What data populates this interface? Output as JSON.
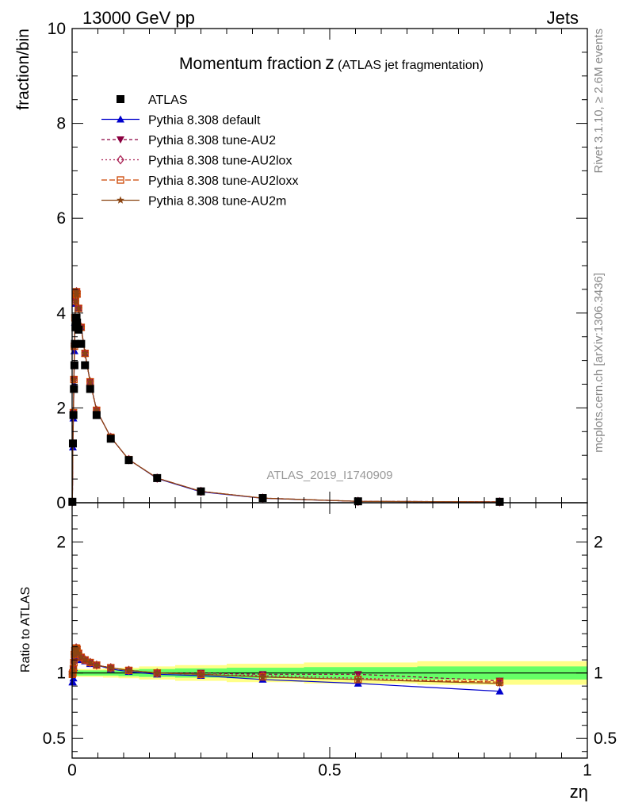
{
  "header": {
    "left": "13000 GeV pp",
    "right": "Jets"
  },
  "title": {
    "main": "Momentum fraction",
    "var": "z",
    "sub": "(ATLAS jet fragmentation)"
  },
  "side": {
    "rivet": "Rivet 3.1.10, ≥ 2.6M events",
    "mcplots": "mcplots.cern.ch [arXiv:1306.3436]"
  },
  "watermark": "ATLAS_2019_I1740909",
  "ylabel_top": "fraction/bin",
  "ylabel_bottom": "Ratio to ATLAS",
  "xlabel": "zη",
  "colors": {
    "atlas": "#000000",
    "default": "#0000cc",
    "au2": "#8b0040",
    "au2lox": "#aa2255",
    "au2loxx": "#cc4400",
    "au2m": "#8b4513",
    "band_inner": "#66ff66",
    "band_outer": "#ffff88"
  },
  "chart_data": [
    {
      "type": "scatter",
      "panel": "main",
      "ylabel": "fraction/bin",
      "xlim": [
        0,
        1
      ],
      "ylim": [
        0,
        10
      ],
      "yticks": [
        "0",
        "2",
        "4",
        "6",
        "8",
        "10"
      ],
      "legend_position": "top-left",
      "series": [
        {
          "name": "ATLAS",
          "key": "atlas",
          "marker": "square",
          "x": [
            0.0005,
            0.0015,
            0.0025,
            0.0035,
            0.0045,
            0.0055,
            0.0065,
            0.0075,
            0.0085,
            0.0095,
            0.0125,
            0.0175,
            0.025,
            0.035,
            0.0475,
            0.075,
            0.11,
            0.165,
            0.25,
            0.37,
            0.555,
            0.83
          ],
          "y": [
            0.02,
            1.25,
            1.85,
            2.4,
            2.9,
            3.35,
            3.7,
            3.85,
            3.9,
            3.8,
            3.65,
            3.35,
            2.9,
            2.4,
            1.85,
            1.35,
            0.9,
            0.52,
            0.24,
            0.1,
            0.03,
            0.02
          ]
        },
        {
          "name": "Pythia 8.308 default",
          "key": "default",
          "marker": "triangle-up",
          "x": [
            0.0005,
            0.0015,
            0.0025,
            0.0035,
            0.0045,
            0.0055,
            0.0065,
            0.0075,
            0.0085,
            0.0095,
            0.0125,
            0.0175,
            0.025,
            0.035,
            0.0475,
            0.075,
            0.11,
            0.165,
            0.25,
            0.37,
            0.555,
            0.83
          ],
          "y": [
            0.02,
            1.17,
            1.78,
            2.5,
            3.2,
            3.8,
            4.2,
            4.4,
            4.45,
            4.4,
            4.1,
            3.7,
            3.15,
            2.55,
            1.95,
            1.38,
            0.91,
            0.51,
            0.23,
            0.093,
            0.028,
            0.017
          ]
        },
        {
          "name": "Pythia 8.308 tune-AU2",
          "key": "au2",
          "marker": "triangle-down",
          "x": [
            0.0005,
            0.0015,
            0.0025,
            0.0035,
            0.0045,
            0.0055,
            0.0065,
            0.0075,
            0.0085,
            0.0095,
            0.0125,
            0.0175,
            0.025,
            0.035,
            0.0475,
            0.075,
            0.11,
            0.165,
            0.25,
            0.37,
            0.555,
            0.83
          ],
          "y": [
            0.02,
            1.25,
            1.9,
            2.6,
            3.3,
            3.9,
            4.25,
            4.4,
            4.45,
            4.4,
            4.1,
            3.7,
            3.15,
            2.55,
            1.95,
            1.38,
            0.91,
            0.52,
            0.24,
            0.098,
            0.03,
            0.019
          ]
        },
        {
          "name": "Pythia 8.308 tune-AU2lox",
          "key": "au2lox",
          "marker": "diamond-open",
          "x": [
            0.0005,
            0.0015,
            0.0025,
            0.0035,
            0.0045,
            0.0055,
            0.0065,
            0.0075,
            0.0085,
            0.0095,
            0.0125,
            0.0175,
            0.025,
            0.035,
            0.0475,
            0.075,
            0.11,
            0.165,
            0.25,
            0.37,
            0.555,
            0.83
          ],
          "y": [
            0.02,
            1.25,
            1.9,
            2.6,
            3.3,
            3.9,
            4.25,
            4.4,
            4.45,
            4.4,
            4.1,
            3.7,
            3.15,
            2.55,
            1.95,
            1.38,
            0.91,
            0.52,
            0.24,
            0.097,
            0.029,
            0.019
          ]
        },
        {
          "name": "Pythia 8.308 tune-AU2loxx",
          "key": "au2loxx",
          "marker": "square-open",
          "x": [
            0.0005,
            0.0015,
            0.0025,
            0.0035,
            0.0045,
            0.0055,
            0.0065,
            0.0075,
            0.0085,
            0.0095,
            0.0125,
            0.0175,
            0.025,
            0.035,
            0.0475,
            0.075,
            0.11,
            0.165,
            0.25,
            0.37,
            0.555,
            0.83
          ],
          "y": [
            0.02,
            1.25,
            1.9,
            2.6,
            3.3,
            3.9,
            4.25,
            4.4,
            4.45,
            4.4,
            4.1,
            3.7,
            3.15,
            2.55,
            1.95,
            1.38,
            0.91,
            0.52,
            0.24,
            0.096,
            0.029,
            0.018
          ]
        },
        {
          "name": "Pythia 8.308 tune-AU2m",
          "key": "au2m",
          "marker": "star",
          "x": [
            0.0005,
            0.0015,
            0.0025,
            0.0035,
            0.0045,
            0.0055,
            0.0065,
            0.0075,
            0.0085,
            0.0095,
            0.0125,
            0.0175,
            0.025,
            0.035,
            0.0475,
            0.075,
            0.11,
            0.165,
            0.25,
            0.37,
            0.555,
            0.83
          ],
          "y": [
            0.02,
            1.25,
            1.9,
            2.6,
            3.3,
            3.9,
            4.25,
            4.4,
            4.45,
            4.4,
            4.1,
            3.7,
            3.15,
            2.55,
            1.95,
            1.38,
            0.91,
            0.52,
            0.24,
            0.097,
            0.029,
            0.018
          ]
        }
      ]
    },
    {
      "type": "line",
      "panel": "ratio",
      "ylabel": "Ratio to ATLAS",
      "xlabel": "zη",
      "xlim": [
        0,
        1
      ],
      "ylim": [
        0.35,
        2.3
      ],
      "yticks": [
        "0.5",
        "1",
        "2"
      ],
      "xticks": [
        "0",
        "0.5",
        "1"
      ],
      "reference_line": 1,
      "bands": {
        "x_edges": [
          0.0,
          0.01,
          0.02,
          0.03,
          0.04,
          0.06,
          0.09,
          0.13,
          0.2,
          0.3,
          0.45,
          0.67,
          1.0
        ],
        "inner_half_width": [
          0.02,
          0.02,
          0.02,
          0.02,
          0.02,
          0.02,
          0.025,
          0.03,
          0.035,
          0.04,
          0.045,
          0.05
        ],
        "outer_half_width": [
          0.03,
          0.03,
          0.03,
          0.03,
          0.03,
          0.035,
          0.04,
          0.05,
          0.06,
          0.07,
          0.08,
          0.09
        ]
      },
      "series": [
        {
          "name": "Pythia 8.308 default",
          "key": "default",
          "marker": "triangle-up",
          "x": [
            0.0005,
            0.0015,
            0.0025,
            0.0035,
            0.0045,
            0.0055,
            0.0065,
            0.0075,
            0.0085,
            0.0095,
            0.0125,
            0.0175,
            0.025,
            0.035,
            0.0475,
            0.075,
            0.11,
            0.165,
            0.25,
            0.37,
            0.555,
            0.83
          ],
          "y": [
            0.93,
            0.93,
            0.96,
            1.04,
            1.1,
            1.13,
            1.14,
            1.14,
            1.14,
            1.16,
            1.12,
            1.1,
            1.09,
            1.07,
            1.06,
            1.03,
            1.01,
            0.99,
            0.98,
            0.95,
            0.92,
            0.86
          ]
        },
        {
          "name": "Pythia 8.308 tune-AU2",
          "key": "au2",
          "marker": "triangle-down",
          "x": [
            0.0005,
            0.0015,
            0.0025,
            0.0035,
            0.0045,
            0.0055,
            0.0065,
            0.0075,
            0.0085,
            0.0095,
            0.0125,
            0.0175,
            0.025,
            0.035,
            0.0475,
            0.075,
            0.11,
            0.165,
            0.25,
            0.37,
            0.555,
            0.83
          ],
          "y": [
            0.99,
            1.0,
            1.03,
            1.08,
            1.14,
            1.17,
            1.18,
            1.19,
            1.19,
            1.18,
            1.15,
            1.12,
            1.1,
            1.08,
            1.06,
            1.04,
            1.02,
            1.0,
            1.0,
            0.99,
            0.99,
            0.94
          ]
        },
        {
          "name": "Pythia 8.308 tune-AU2lox",
          "key": "au2lox",
          "marker": "diamond-open",
          "x": [
            0.0005,
            0.0015,
            0.0025,
            0.0035,
            0.0045,
            0.0055,
            0.0065,
            0.0075,
            0.0085,
            0.0095,
            0.0125,
            0.0175,
            0.025,
            0.035,
            0.0475,
            0.075,
            0.11,
            0.165,
            0.25,
            0.37,
            0.555,
            0.83
          ],
          "y": [
            0.99,
            1.0,
            1.03,
            1.08,
            1.14,
            1.17,
            1.18,
            1.19,
            1.19,
            1.18,
            1.15,
            1.12,
            1.1,
            1.08,
            1.06,
            1.04,
            1.02,
            1.0,
            0.99,
            0.98,
            0.96,
            0.93
          ]
        },
        {
          "name": "Pythia 8.308 tune-AU2loxx",
          "key": "au2loxx",
          "marker": "square-open",
          "x": [
            0.0005,
            0.0015,
            0.0025,
            0.0035,
            0.0045,
            0.0055,
            0.0065,
            0.0075,
            0.0085,
            0.0095,
            0.0125,
            0.0175,
            0.025,
            0.035,
            0.0475,
            0.075,
            0.11,
            0.165,
            0.25,
            0.37,
            0.555,
            0.83
          ],
          "y": [
            0.99,
            1.0,
            1.03,
            1.08,
            1.14,
            1.17,
            1.18,
            1.19,
            1.19,
            1.18,
            1.15,
            1.12,
            1.1,
            1.08,
            1.06,
            1.04,
            1.02,
            1.0,
            0.99,
            0.97,
            0.95,
            0.93
          ]
        },
        {
          "name": "Pythia 8.308 tune-AU2m",
          "key": "au2m",
          "marker": "star",
          "x": [
            0.0005,
            0.0015,
            0.0025,
            0.0035,
            0.0045,
            0.0055,
            0.0065,
            0.0075,
            0.0085,
            0.0095,
            0.0125,
            0.0175,
            0.025,
            0.035,
            0.0475,
            0.075,
            0.11,
            0.165,
            0.25,
            0.37,
            0.555,
            0.83
          ],
          "y": [
            0.99,
            1.0,
            1.03,
            1.08,
            1.14,
            1.17,
            1.18,
            1.19,
            1.19,
            1.18,
            1.15,
            1.12,
            1.1,
            1.08,
            1.06,
            1.04,
            1.02,
            1.0,
            0.99,
            0.97,
            0.95,
            0.92
          ]
        }
      ]
    }
  ]
}
